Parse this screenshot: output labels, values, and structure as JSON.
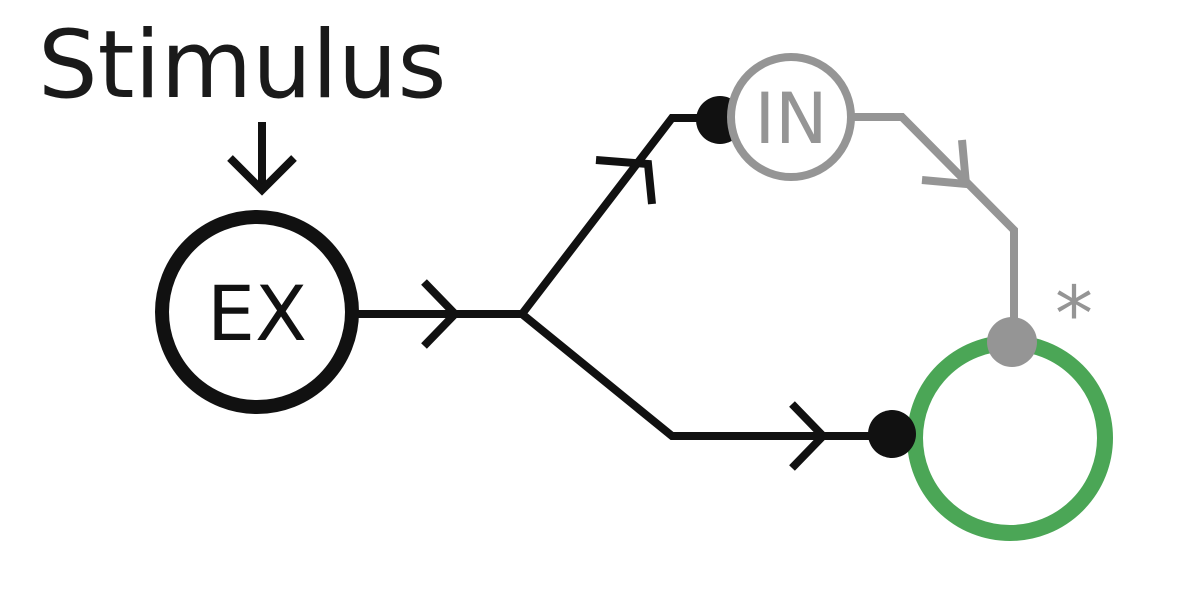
{
  "diagram": {
    "stimulus_label": "Stimulus",
    "excitatory_label": "EX",
    "inhibitory_label": "IN",
    "marker_label": "*",
    "colors": {
      "excitatory": "#111111",
      "inhibitory": "#959595",
      "target": "#4ba656",
      "background": "#ffffff"
    }
  }
}
